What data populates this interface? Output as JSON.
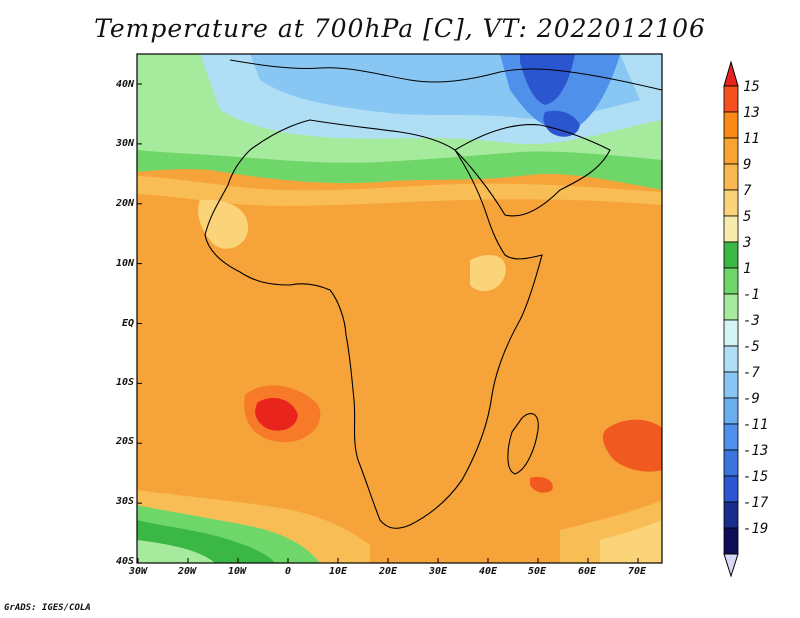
{
  "title": "Temperature at 700hPa [C], VT: 2022012106",
  "credit": "GrADS: IGES/COLA",
  "lat_labels": [
    "40N",
    "30N",
    "20N",
    "10N",
    "EQ",
    "10S",
    "20S",
    "30S",
    "40S"
  ],
  "lon_labels": [
    "30W",
    "20W",
    "10W",
    "0",
    "10E",
    "20E",
    "30E",
    "40E",
    "50E",
    "60E",
    "70E"
  ],
  "colorbar": {
    "labels": [
      "15",
      "13",
      "11",
      "9",
      "7",
      "5",
      "3",
      "1",
      "-1",
      "-3",
      "-5",
      "-7",
      "-9",
      "-11",
      "-13",
      "-15",
      "-17",
      "-19"
    ],
    "colors": [
      "#e8241c",
      "#f7501f",
      "#f98a18",
      "#f9a333",
      "#f9b751",
      "#fbd479",
      "#f6ecab",
      "#3ab744",
      "#6fd669",
      "#a5ea9d",
      "#d5f4f4",
      "#b0dff5",
      "#88c7f3",
      "#6aaef0",
      "#4f91ea",
      "#3c74de",
      "#2c56cf",
      "#1b2d8c",
      "#0d0f59",
      "#d8d8f6"
    ]
  },
  "field_colors": {
    "hot": "#f05a20",
    "warm": "#f6a43a",
    "mild": "#f9bd55",
    "light": "#fbd479",
    "green": "#6fd669",
    "cyan": "#d5f4f4",
    "blue": "#88c7f3",
    "deep_blue": "#2c56cf"
  }
}
